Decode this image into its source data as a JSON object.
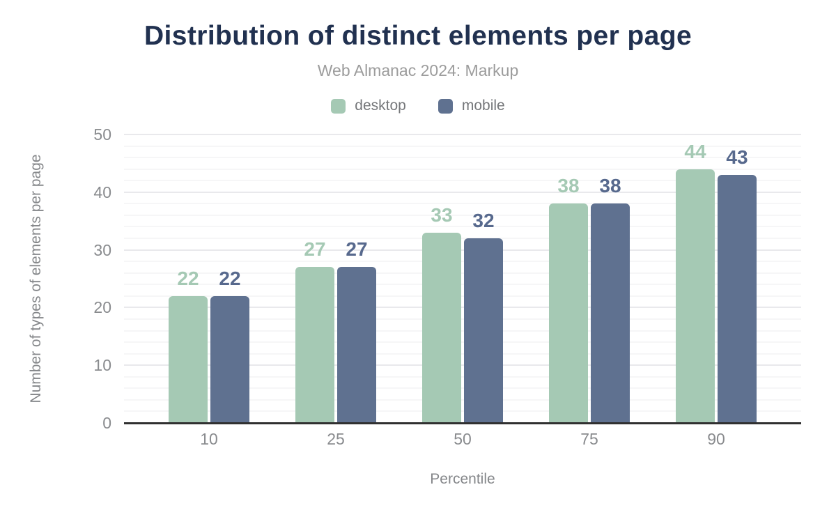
{
  "title": "Distribution of distinct elements per page",
  "subtitle": "Web Almanac 2024: Markup",
  "legend": {
    "items": [
      {
        "label": "desktop",
        "color": "#a5c9b4"
      },
      {
        "label": "mobile",
        "color": "#5f7190"
      }
    ]
  },
  "chart_data": {
    "type": "bar",
    "title": "Distribution of distinct elements per page",
    "subtitle": "Web Almanac 2024: Markup",
    "categories": [
      "10",
      "25",
      "50",
      "75",
      "90"
    ],
    "series": [
      {
        "name": "desktop",
        "color": "#a5c9b4",
        "label_color": "#a5c9b4",
        "values": [
          22,
          27,
          33,
          38,
          44
        ]
      },
      {
        "name": "mobile",
        "color": "#5f7190",
        "label_color": "#57698d",
        "values": [
          22,
          27,
          32,
          38,
          43
        ]
      }
    ],
    "xlabel": "Percentile",
    "ylabel": "Number of types of elements per page",
    "ylim": [
      0,
      50
    ],
    "yticks": [
      0,
      10,
      20,
      30,
      40,
      50
    ],
    "grid": {
      "on": true,
      "minor_step": 2,
      "major_step": 10
    },
    "legend_position": "top",
    "data_labels": true,
    "background": "#ffffff",
    "colors": {
      "title": "#213150",
      "subtitle": "#9c9c9c",
      "legend_text": "#75777a",
      "tick_labels": "#898b8e",
      "axis_titles": "#85878a",
      "axis_line": "#303030",
      "grid_minor": "#f6f6f7",
      "grid_major": "#e9e9ec"
    }
  }
}
